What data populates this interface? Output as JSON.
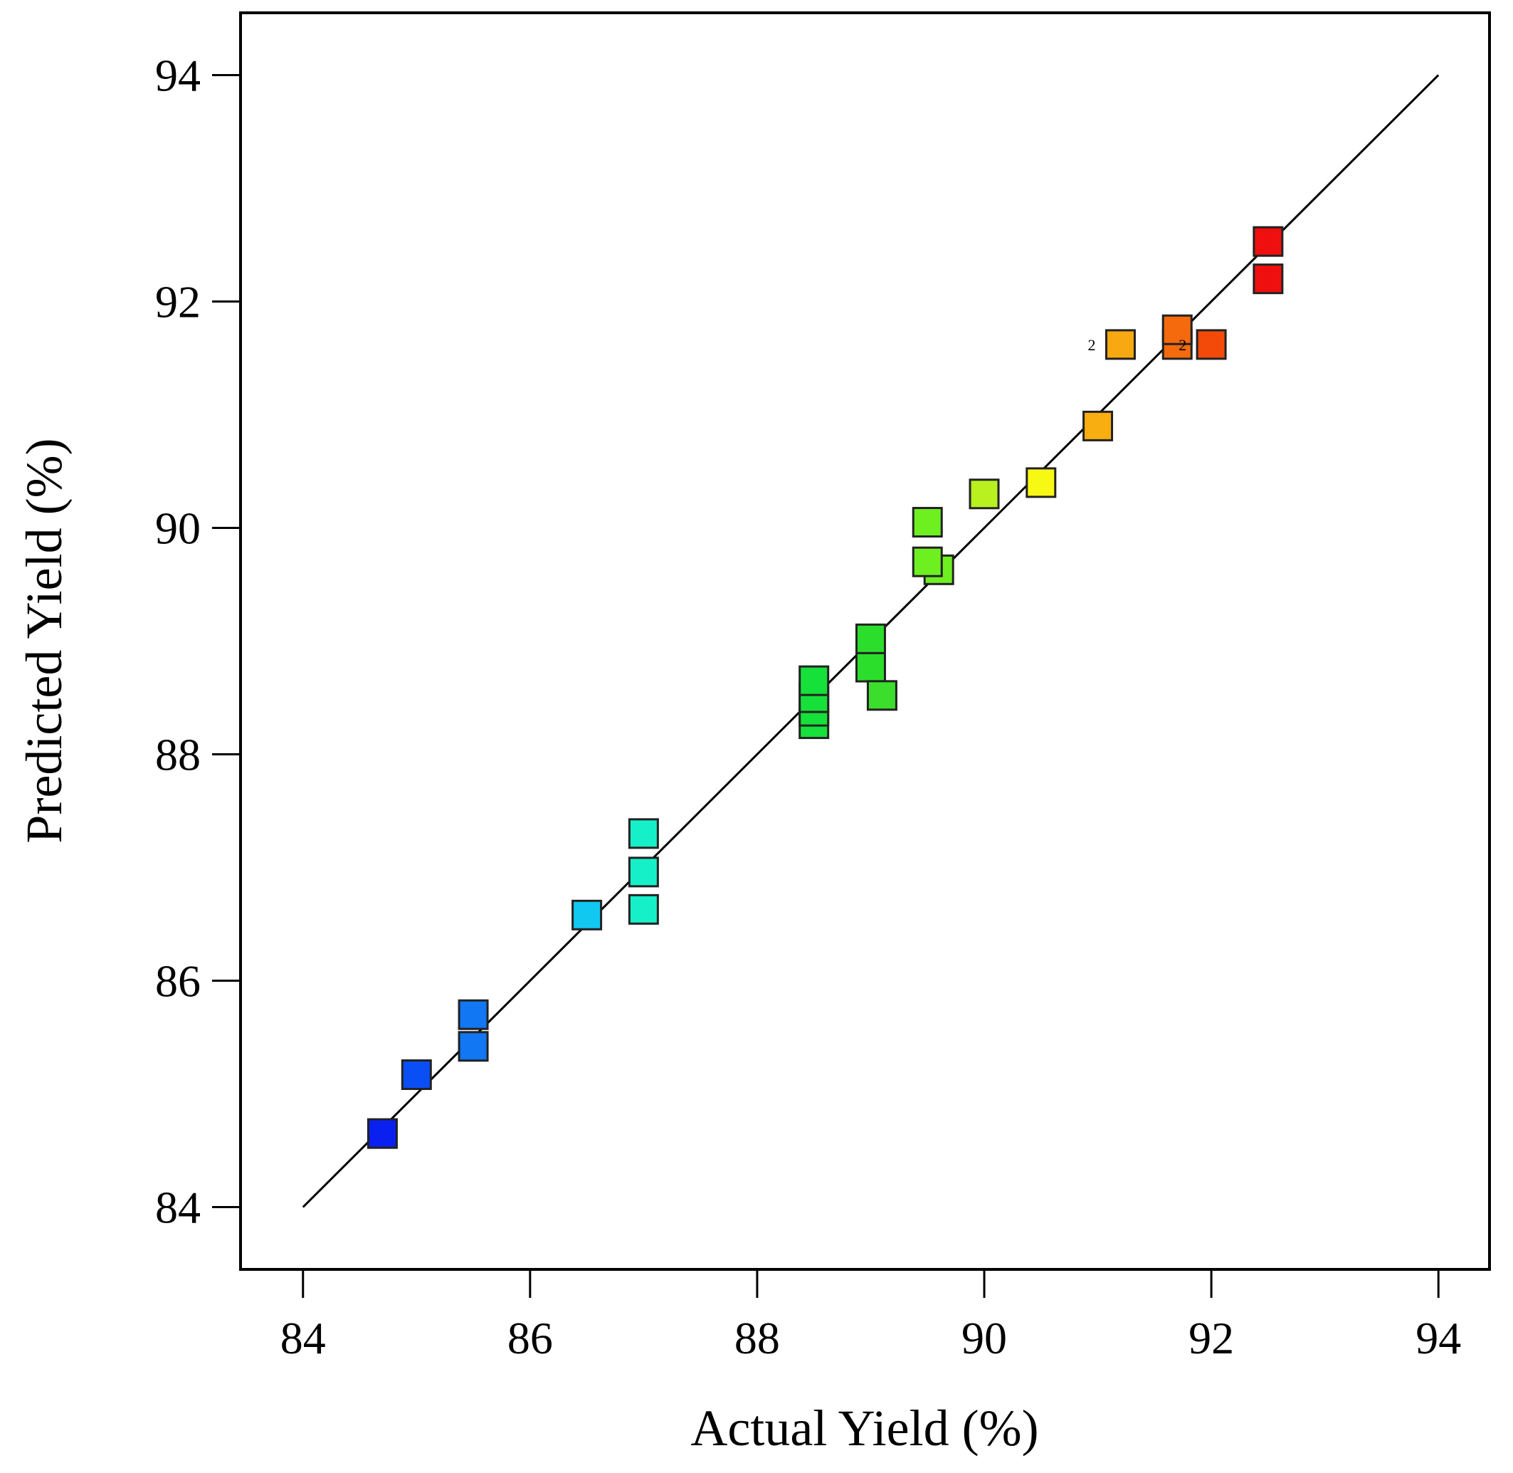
{
  "chart_data": {
    "type": "scatter",
    "title": "",
    "xlabel": "Actual Yield (%)",
    "ylabel": "Predicted Yield (%)",
    "xlim": [
      83.45,
      94.45
    ],
    "ylim": [
      83.45,
      94.55
    ],
    "xticks": [
      84,
      86,
      88,
      90,
      92,
      94
    ],
    "yticks": [
      84,
      86,
      88,
      90,
      92,
      94
    ],
    "xtick_labels": [
      "84",
      "86",
      "88",
      "90",
      "92",
      "94"
    ],
    "ytick_labels": [
      "84",
      "86",
      "88",
      "90",
      "92",
      "94"
    ],
    "grid": false,
    "reference_line": {
      "x": [
        84,
        94
      ],
      "y": [
        84,
        94
      ]
    },
    "points": [
      {
        "x": 84.7,
        "y": 84.65,
        "color": "#0a20f0"
      },
      {
        "x": 85.0,
        "y": 85.17,
        "color": "#0a4ff5"
      },
      {
        "x": 85.5,
        "y": 85.42,
        "color": "#1177f2"
      },
      {
        "x": 85.5,
        "y": 85.7,
        "color": "#1177f2"
      },
      {
        "x": 86.5,
        "y": 86.58,
        "color": "#11c9f0"
      },
      {
        "x": 87.0,
        "y": 86.63,
        "color": "#16f0c8"
      },
      {
        "x": 87.0,
        "y": 86.96,
        "color": "#16f0c8"
      },
      {
        "x": 87.0,
        "y": 87.3,
        "color": "#16f0c8"
      },
      {
        "x": 88.5,
        "y": 88.27,
        "color": "#16e03a"
      },
      {
        "x": 88.5,
        "y": 88.38,
        "color": "#16e03a"
      },
      {
        "x": 88.5,
        "y": 88.5,
        "color": "#16e03a"
      },
      {
        "x": 88.5,
        "y": 88.65,
        "color": "#16e03a"
      },
      {
        "x": 89.0,
        "y": 88.77,
        "color": "#2cde2c"
      },
      {
        "x": 89.0,
        "y": 89.02,
        "color": "#2cde2c"
      },
      {
        "x": 89.1,
        "y": 88.52,
        "color": "#3bde2c"
      },
      {
        "x": 89.6,
        "y": 89.63,
        "color": "#6ef020"
      },
      {
        "x": 89.5,
        "y": 89.7,
        "color": "#6ef020"
      },
      {
        "x": 89.5,
        "y": 90.05,
        "color": "#6ef020"
      },
      {
        "x": 90.0,
        "y": 90.3,
        "color": "#b8f020"
      },
      {
        "x": 90.5,
        "y": 90.4,
        "color": "#f8f815"
      },
      {
        "x": 91.0,
        "y": 90.9,
        "color": "#f8ae10"
      },
      {
        "x": 91.2,
        "y": 91.62,
        "color": "#f8a810",
        "label": "2"
      },
      {
        "x": 91.7,
        "y": 91.62,
        "color": "#f56a0c",
        "label": "2"
      },
      {
        "x": 91.7,
        "y": 91.75,
        "color": "#f56a0c"
      },
      {
        "x": 92.0,
        "y": 91.62,
        "color": "#f34a0a"
      },
      {
        "x": 92.5,
        "y": 92.2,
        "color": "#f00f0f"
      },
      {
        "x": 92.5,
        "y": 92.53,
        "color": "#f00f0f"
      }
    ]
  }
}
